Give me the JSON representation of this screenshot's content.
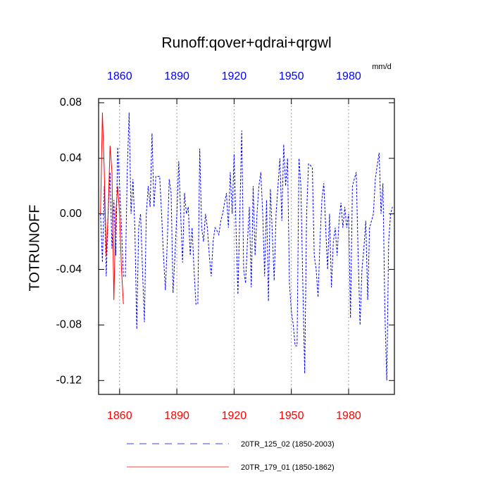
{
  "chart_data": {
    "type": "line",
    "title": "Runoff:qover+qdrai+qrgwl",
    "units": "mm/d",
    "y_label": "TOTRUNOFF",
    "xlim": [
      1849,
      2004
    ],
    "xticks": [
      1860,
      1890,
      1920,
      1950,
      1980
    ],
    "ylim": [
      -0.13,
      0.083
    ],
    "yticks": [
      0.08,
      0.04,
      {
        "value": 0,
        "label": "0.00"
      },
      -0.04,
      -0.08,
      -0.12
    ],
    "grid": true,
    "top_axis_color": "#0000ff",
    "bottom_axis_color": "#ff0000",
    "series": [
      {
        "name": "20TR_125_02 (1850-2003)",
        "color": "#0000ff",
        "dashed": true,
        "x": [
          1850,
          1851,
          1852,
          1853,
          1854,
          1855,
          1856,
          1857,
          1858,
          1859,
          1860,
          1861,
          1862,
          1863,
          1864,
          1865,
          1866,
          1867,
          1868,
          1869,
          1870,
          1871,
          1872,
          1873,
          1874,
          1875,
          1876,
          1877,
          1878,
          1879,
          1880,
          1881,
          1882,
          1883,
          1884,
          1885,
          1886,
          1887,
          1888,
          1889,
          1890,
          1891,
          1892,
          1893,
          1894,
          1895,
          1896,
          1897,
          1898,
          1899,
          1900,
          1901,
          1902,
          1903,
          1904,
          1905,
          1906,
          1907,
          1908,
          1909,
          1910,
          1911,
          1912,
          1913,
          1914,
          1915,
          1916,
          1917,
          1918,
          1919,
          1920,
          1921,
          1922,
          1923,
          1924,
          1925,
          1926,
          1927,
          1928,
          1929,
          1930,
          1931,
          1932,
          1933,
          1934,
          1935,
          1936,
          1937,
          1938,
          1939,
          1940,
          1941,
          1942,
          1943,
          1944,
          1945,
          1946,
          1947,
          1948,
          1949,
          1950,
          1951,
          1952,
          1953,
          1954,
          1955,
          1956,
          1957,
          1958,
          1959,
          1960,
          1961,
          1962,
          1963,
          1964,
          1965,
          1966,
          1967,
          1968,
          1969,
          1970,
          1971,
          1972,
          1973,
          1974,
          1975,
          1976,
          1977,
          1978,
          1979,
          1980,
          1981,
          1982,
          1983,
          1984,
          1985,
          1986,
          1987,
          1988,
          1989,
          1990,
          1991,
          1992,
          1993,
          1994,
          1995,
          1996,
          1997,
          1998,
          1999,
          2000,
          2001,
          2002,
          2003
        ],
        "values": [
          0.0,
          -0.035,
          0.02,
          -0.045,
          0.0,
          0.03,
          -0.025,
          0.01,
          -0.03,
          0.048,
          0.02,
          -0.01,
          -0.045,
          -0.045,
          0.03,
          0.073,
          0.0,
          0.025,
          -0.01,
          -0.083,
          -0.01,
          0.0,
          -0.04,
          -0.078,
          0.0,
          0.02,
          0.005,
          0.058,
          0.005,
          0.027,
          0.027,
          0.027,
          0.0,
          -0.03,
          -0.055,
          -0.02,
          0.025,
          0.015,
          -0.057,
          -0.03,
          0.0,
          0.038,
          0.0,
          -0.035,
          0.015,
          0.0,
          0.005,
          -0.03,
          -0.01,
          -0.04,
          -0.065,
          -0.065,
          0.047,
          -0.01,
          -0.02,
          0.0,
          -0.01,
          -0.03,
          -0.045,
          -0.02,
          -0.01,
          -0.012,
          -0.015,
          -0.005,
          0.0,
          0.008,
          0.015,
          -0.01,
          0.03,
          0.0,
          0.043,
          -0.01,
          -0.058,
          0.0,
          0.06,
          -0.04,
          -0.05,
          -0.02,
          0.005,
          -0.053,
          0.02,
          -0.03,
          0.0,
          0.02,
          0.03,
          0.0,
          -0.045,
          0.01,
          -0.063,
          0.018,
          -0.013,
          -0.048,
          0.0,
          0.02,
          0.04,
          -0.005,
          0.05,
          0.02,
          0.04,
          -0.05,
          -0.07,
          -0.08,
          -0.095,
          -0.095,
          0.04,
          0.02,
          -0.05,
          -0.115,
          0.0,
          0.036,
          0.035,
          0.033,
          -0.03,
          -0.04,
          -0.06,
          -0.02,
          0.01,
          0.022,
          -0.01,
          -0.04,
          0.0,
          -0.053,
          -0.02,
          -0.01,
          -0.03,
          -0.005,
          0.008,
          -0.01,
          0.005,
          -0.01,
          0.0,
          -0.075,
          0.02,
          0.025,
          0.03,
          -0.03,
          -0.08,
          -0.04,
          -0.025,
          -0.005,
          -0.062,
          -0.01,
          -0.005,
          0.0,
          0.025,
          0.035,
          0.044,
          0.0,
          0.022,
          -0.07,
          -0.12,
          -0.02,
          0.0,
          0.005
        ]
      },
      {
        "name": "20TR_179_01 (1850-1862)",
        "color": "#ff0000",
        "dashed": false,
        "x": [
          1850,
          1851,
          1852,
          1853,
          1854,
          1855,
          1856,
          1857,
          1858,
          1859,
          1860,
          1861,
          1862
        ],
        "values": [
          0.0,
          0.073,
          0.03,
          -0.03,
          0.0,
          0.049,
          0.03,
          -0.062,
          0.0,
          0.02,
          0.0,
          -0.04,
          -0.065
        ]
      }
    ]
  }
}
